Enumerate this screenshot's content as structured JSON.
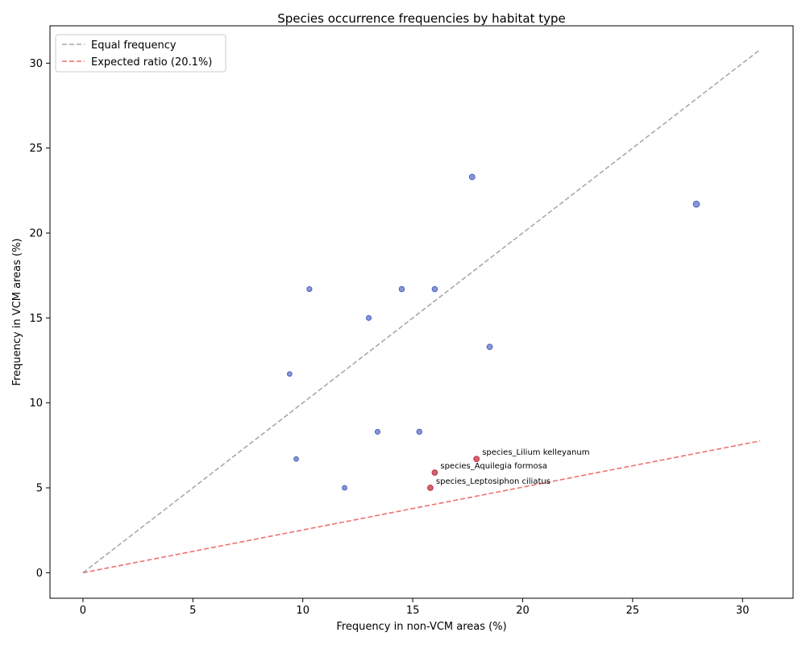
{
  "chart_data": {
    "type": "scatter",
    "title": "Species occurrence frequencies by habitat type",
    "xlabel": "Frequency in non-VCM areas (%)",
    "ylabel": "Frequency in VCM areas (%)",
    "xlim": [
      -1.5,
      32.3
    ],
    "ylim": [
      -1.5,
      32.2
    ],
    "xticks": [
      0,
      5,
      10,
      15,
      20,
      25,
      30
    ],
    "yticks": [
      0,
      5,
      10,
      15,
      20,
      25,
      30
    ],
    "grid": false,
    "legend_position": "top-left",
    "colors": {
      "points": "#4a5fc1",
      "highlight": "#c0303f",
      "equal_line": "#a9a9a9",
      "expected_line": "#f07070"
    },
    "reference_lines": [
      {
        "label": "Equal frequency",
        "slope": 1.0,
        "x_range": [
          0,
          30.8
        ],
        "style": "dashed",
        "color": "#a9a9a9"
      },
      {
        "label": "Expected ratio (20.1%)",
        "slope": 0.252,
        "x_range": [
          0,
          30.8
        ],
        "style": "dashed",
        "color": "#f07070"
      }
    ],
    "points": [
      {
        "x": 17.7,
        "y": 23.3,
        "size": 22
      },
      {
        "x": 27.9,
        "y": 21.7,
        "size": 28
      },
      {
        "x": 10.3,
        "y": 16.7,
        "size": 18
      },
      {
        "x": 14.5,
        "y": 16.7,
        "size": 20
      },
      {
        "x": 16.0,
        "y": 16.7,
        "size": 20
      },
      {
        "x": 13.0,
        "y": 15.0,
        "size": 18
      },
      {
        "x": 18.5,
        "y": 13.3,
        "size": 22
      },
      {
        "x": 9.4,
        "y": 11.7,
        "size": 16
      },
      {
        "x": 13.4,
        "y": 8.3,
        "size": 18
      },
      {
        "x": 15.3,
        "y": 8.3,
        "size": 20
      },
      {
        "x": 9.7,
        "y": 6.7,
        "size": 16
      },
      {
        "x": 11.9,
        "y": 5.0,
        "size": 16
      }
    ],
    "highlighted_points": [
      {
        "x": 17.9,
        "y": 6.7,
        "size": 22,
        "label": "species_Lilium kelleyanum"
      },
      {
        "x": 16.0,
        "y": 5.9,
        "size": 22,
        "label": "species_Aquilegia formosa"
      },
      {
        "x": 15.8,
        "y": 5.0,
        "size": 22,
        "label": "species_Leptosiphon ciliatus"
      }
    ]
  }
}
